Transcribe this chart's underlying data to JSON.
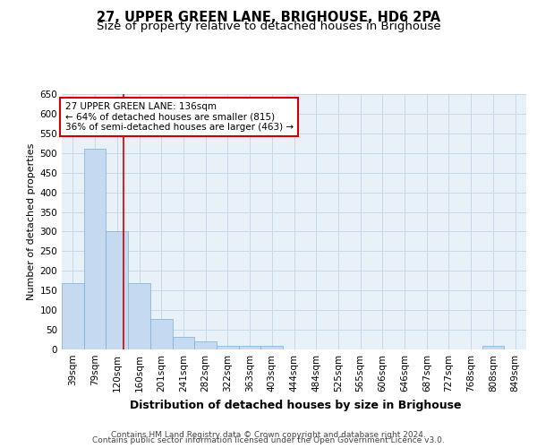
{
  "title": "27, UPPER GREEN LANE, BRIGHOUSE, HD6 2PA",
  "subtitle": "Size of property relative to detached houses in Brighouse",
  "xlabel": "Distribution of detached houses by size in Brighouse",
  "ylabel": "Number of detached properties",
  "categories": [
    "39sqm",
    "79sqm",
    "120sqm",
    "160sqm",
    "201sqm",
    "241sqm",
    "282sqm",
    "322sqm",
    "363sqm",
    "403sqm",
    "444sqm",
    "484sqm",
    "525sqm",
    "565sqm",
    "606sqm",
    "646sqm",
    "687sqm",
    "727sqm",
    "768sqm",
    "808sqm",
    "849sqm"
  ],
  "values": [
    168,
    510,
    302,
    168,
    78,
    32,
    20,
    8,
    8,
    8,
    0,
    0,
    0,
    0,
    0,
    0,
    0,
    0,
    0,
    8,
    0
  ],
  "bar_color": "#c5d9f0",
  "bar_edgecolor": "#7bafd4",
  "grid_color": "#c8d8eb",
  "background_color": "#e8f0f8",
  "ylim": [
    0,
    650
  ],
  "yticks": [
    0,
    50,
    100,
    150,
    200,
    250,
    300,
    350,
    400,
    450,
    500,
    550,
    600,
    650
  ],
  "vline_x_index": 2.78,
  "vline_color": "#cc0000",
  "annotation_line1": "27 UPPER GREEN LANE: 136sqm",
  "annotation_line2": "← 64% of detached houses are smaller (815)",
  "annotation_line3": "36% of semi-detached houses are larger (463) →",
  "annotation_box_color": "#cc0000",
  "footer_line1": "Contains HM Land Registry data © Crown copyright and database right 2024.",
  "footer_line2": "Contains public sector information licensed under the Open Government Licence v3.0.",
  "title_fontsize": 10.5,
  "subtitle_fontsize": 9.5,
  "xlabel_fontsize": 9,
  "ylabel_fontsize": 8,
  "tick_fontsize": 7.5,
  "annotation_fontsize": 7.5,
  "footer_fontsize": 6.5
}
